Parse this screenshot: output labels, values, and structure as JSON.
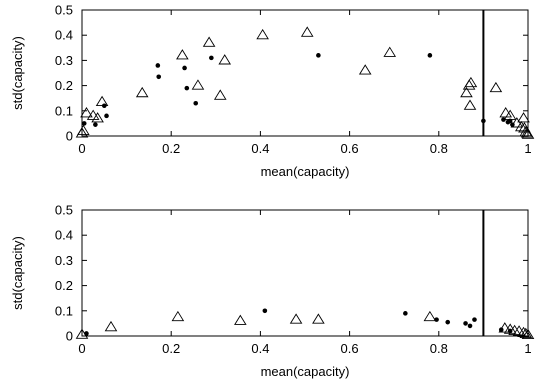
{
  "chart_data": [
    {
      "type": "scatter",
      "xlabel": "mean(capacity)",
      "ylabel": "std(capacity)",
      "xlim": [
        0,
        1
      ],
      "ylim": [
        0,
        0.5
      ],
      "x_ticks": [
        "0",
        "0.2",
        "0.4",
        "0.6",
        "0.8",
        "1"
      ],
      "y_ticks": [
        "0",
        "0.1",
        "0.2",
        "0.3",
        "0.4",
        "0.5"
      ],
      "vline_x": 0.9,
      "grid": false,
      "legend": "none",
      "series": [
        {
          "marker": "triangle",
          "points": [
            [
              0.0,
              0.01
            ],
            [
              0.003,
              0.02
            ],
            [
              0.01,
              0.09
            ],
            [
              0.025,
              0.08
            ],
            [
              0.035,
              0.07
            ],
            [
              0.045,
              0.135
            ],
            [
              0.135,
              0.17
            ],
            [
              0.225,
              0.32
            ],
            [
              0.26,
              0.2
            ],
            [
              0.285,
              0.37
            ],
            [
              0.31,
              0.16
            ],
            [
              0.32,
              0.3
            ],
            [
              0.405,
              0.4
            ],
            [
              0.505,
              0.41
            ],
            [
              0.635,
              0.26
            ],
            [
              0.69,
              0.33
            ],
            [
              0.862,
              0.17
            ],
            [
              0.868,
              0.2
            ],
            [
              0.872,
              0.21
            ],
            [
              0.87,
              0.12
            ],
            [
              0.928,
              0.19
            ],
            [
              0.95,
              0.09
            ],
            [
              0.96,
              0.08
            ],
            [
              0.975,
              0.05
            ],
            [
              0.985,
              0.035
            ],
            [
              0.99,
              0.07
            ],
            [
              0.992,
              0.03
            ],
            [
              0.995,
              0.015
            ],
            [
              0.998,
              0.01
            ],
            [
              1.0,
              0.005
            ]
          ]
        },
        {
          "marker": "dot",
          "points": [
            [
              0.005,
              0.05
            ],
            [
              0.03,
              0.045
            ],
            [
              0.05,
              0.12
            ],
            [
              0.055,
              0.08
            ],
            [
              0.17,
              0.28
            ],
            [
              0.172,
              0.235
            ],
            [
              0.23,
              0.27
            ],
            [
              0.235,
              0.19
            ],
            [
              0.255,
              0.13
            ],
            [
              0.29,
              0.31
            ],
            [
              0.53,
              0.32
            ],
            [
              0.78,
              0.32
            ],
            [
              0.9,
              0.06
            ],
            [
              0.945,
              0.065
            ],
            [
              0.955,
              0.055
            ],
            [
              0.96,
              0.06
            ],
            [
              0.965,
              0.045
            ]
          ]
        }
      ]
    },
    {
      "type": "scatter",
      "xlabel": "mean(capacity)",
      "ylabel": "std(capacity)",
      "xlim": [
        0,
        1
      ],
      "ylim": [
        0,
        0.5
      ],
      "x_ticks": [
        "0",
        "0.2",
        "0.4",
        "0.6",
        "0.8",
        "1"
      ],
      "y_ticks": [
        "0",
        "0.1",
        "0.2",
        "0.3",
        "0.4",
        "0.5"
      ],
      "vline_x": 0.9,
      "grid": false,
      "legend": "none",
      "series": [
        {
          "marker": "triangle",
          "points": [
            [
              0.0,
              0.005
            ],
            [
              0.065,
              0.035
            ],
            [
              0.215,
              0.075
            ],
            [
              0.355,
              0.06
            ],
            [
              0.48,
              0.065
            ],
            [
              0.53,
              0.065
            ],
            [
              0.78,
              0.075
            ],
            [
              0.948,
              0.03
            ],
            [
              0.96,
              0.025
            ],
            [
              0.97,
              0.02
            ],
            [
              0.98,
              0.018
            ],
            [
              0.99,
              0.012
            ],
            [
              0.995,
              0.008
            ],
            [
              1.0,
              0.004
            ]
          ]
        },
        {
          "marker": "dot",
          "points": [
            [
              0.01,
              0.01
            ],
            [
              0.41,
              0.1
            ],
            [
              0.725,
              0.09
            ],
            [
              0.795,
              0.065
            ],
            [
              0.82,
              0.055
            ],
            [
              0.86,
              0.05
            ],
            [
              0.87,
              0.04
            ],
            [
              0.88,
              0.065
            ],
            [
              0.94,
              0.025
            ],
            [
              0.96,
              0.02
            ]
          ]
        }
      ]
    }
  ]
}
